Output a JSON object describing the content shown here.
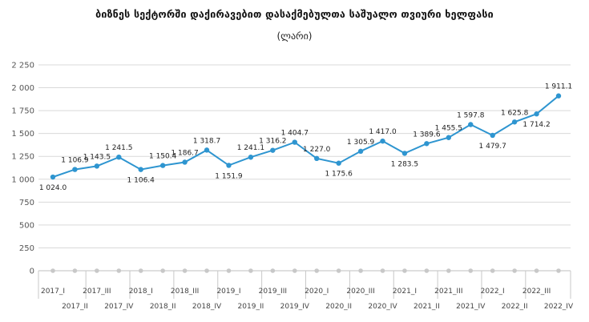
{
  "chart_data": {
    "type": "line",
    "title": "ბიზნეს სექტორში დაქირავებით დასაქმებულთა საშუალო თვიური ხელფასი",
    "subtitle": "(ლარი)",
    "categories": [
      "2017_I",
      "2017_II",
      "2017_III",
      "2017_IV",
      "2018_I",
      "2018_II",
      "2018_III",
      "2018_IV",
      "2019_I",
      "2019_II",
      "2019_III",
      "2019_IV",
      "2020_I",
      "2020_II",
      "2020_III",
      "2020_IV",
      "2021_I",
      "2021_II",
      "2021_III",
      "2021_IV",
      "2022_I",
      "2022_II",
      "2022_III",
      "2022_IV"
    ],
    "series": [
      {
        "values": [
          1024.0,
          1106.9,
          1143.5,
          1241.5,
          1106.4,
          1150.4,
          1186.7,
          1318.7,
          1151.9,
          1241.1,
          1316.2,
          1404.7,
          1227.0,
          1175.6,
          1305.9,
          1417.0,
          1283.5,
          1389.6,
          1455.5,
          1597.8,
          1479.7,
          1625.8,
          1714.2,
          1911.1
        ],
        "labels": [
          "1 024.0",
          "1 106.9",
          "1 143.5",
          "1 241.5",
          "1 106.4",
          "1 150.4",
          "1 186.7",
          "1 318.7",
          "1 151.9",
          "1 241.1",
          "1 316.2",
          "1 404.7",
          "1 227.0",
          "1 175.6",
          "1 305.9",
          "1 417.0",
          "1 283.5",
          "1 389.6",
          "1 455.5",
          "1 597.8",
          "1 479.7",
          "1 625.8",
          "1 714.2",
          "1 911.1"
        ],
        "color": "#2e95d0"
      }
    ],
    "xlabel": "",
    "ylabel": "",
    "ylim": [
      0,
      2250
    ],
    "yticks": [
      0,
      250,
      500,
      750,
      1000,
      1250,
      1500,
      1750,
      2000,
      2250
    ],
    "ytick_labels": [
      "0",
      "250",
      "500",
      "750",
      "1 000",
      "1 250",
      "1 500",
      "1 750",
      "2 000",
      "2 250"
    ],
    "grid": true,
    "legend": "none",
    "colors": {
      "line": "#2e95d0",
      "grid": "#d9d9d9",
      "baseline_marker": "#c8c8c8"
    }
  }
}
